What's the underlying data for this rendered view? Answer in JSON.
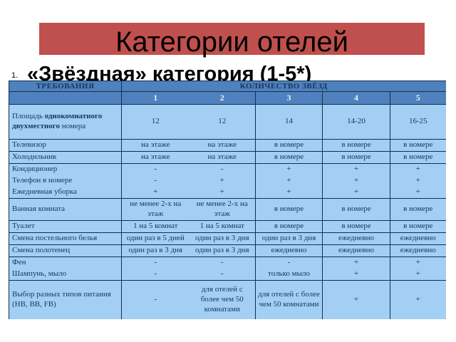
{
  "slide": {
    "title": "Категории отелей",
    "list_number": "1.",
    "heading": "«Звёздная» категория (1-5*)",
    "colors": {
      "banner_bg": "#c0504d",
      "table_header_bg": "#4e81bd",
      "table_cell_bg": "#a2cff3",
      "table_border": "#14304f",
      "table_text": "#17365d",
      "star_number_text": "#e8f1fb"
    }
  },
  "table": {
    "requirements_header": "ТРЕБОВАНИЯ",
    "stars_header": "КОЛИЧЕСТВО ЗВЁЗД",
    "star_levels": [
      "1",
      "2",
      "3",
      "4",
      "5"
    ],
    "row_groups": [
      {
        "rows": [
          {
            "label": [
              {
                "t": "Площадь ",
                "b": false
              },
              {
                "t": "однокомнатного двухместного",
                "b": true
              },
              {
                "t": " номера",
                "b": false
              }
            ],
            "cells": [
              "12",
              "12",
              "14",
              "14-20",
              "16-25"
            ]
          }
        ]
      },
      {
        "rows": [
          {
            "label": "Телевизор",
            "cells": [
              "на этаже",
              "на этаже",
              "в номере",
              "в номере",
              "в номере"
            ]
          }
        ]
      },
      {
        "rows": [
          {
            "label": "Холодильник",
            "cells": [
              "на этаже",
              "на этаже",
              "в номере",
              "в номере",
              "в номере"
            ]
          }
        ]
      },
      {
        "rows": [
          {
            "label": "Кондиционер",
            "cells": [
              "-",
              "-",
              "+",
              "+",
              "+"
            ]
          },
          {
            "label": "Телефон в номере",
            "cells": [
              "-",
              "+",
              "+",
              "+",
              "+"
            ]
          },
          {
            "label": "Ежедневная уборка",
            "cells": [
              "+",
              "+",
              "+",
              "+",
              "+"
            ]
          }
        ]
      },
      {
        "rows": [
          {
            "label": "Ванная комната",
            "cells": [
              "не менее 2-х на этаж",
              "не менее 2-х на этаж",
              "в номере",
              "в номере",
              "в номере"
            ]
          }
        ]
      },
      {
        "rows": [
          {
            "label": "Туалет",
            "cells": [
              "1 на 5 комнат",
              "1 на 5 комнат",
              "в номере",
              "в номере",
              "в номере"
            ]
          }
        ]
      },
      {
        "rows": [
          {
            "label": "Смена постельного белья",
            "cells": [
              "один раз в 5 дней",
              "один раз в 3 дня",
              "один раз в 3 дня",
              "ежедневно",
              "ежедневно"
            ]
          }
        ]
      },
      {
        "rows": [
          {
            "label": "Смена полотенец",
            "cells": [
              "один раз в 3 дня",
              "один раз в 3 дня",
              "ежедневно",
              "ежедневно",
              "ежедневно"
            ]
          }
        ]
      },
      {
        "rows": [
          {
            "label": "Фен",
            "cells": [
              "-",
              "-",
              "-",
              "+",
              "+"
            ]
          },
          {
            "label": "Шампунь, мыло",
            "cells": [
              "-",
              "-",
              "только мыло",
              "+",
              "+"
            ]
          }
        ]
      },
      {
        "rows": [
          {
            "label": "Выбор разных типов питания (HB, BB, FB)",
            "cells": [
              "-",
              "для отелей с более чем 50 комнатами",
              "для отелей с более чем 50 комнатами",
              "+",
              "+"
            ]
          }
        ]
      }
    ]
  }
}
